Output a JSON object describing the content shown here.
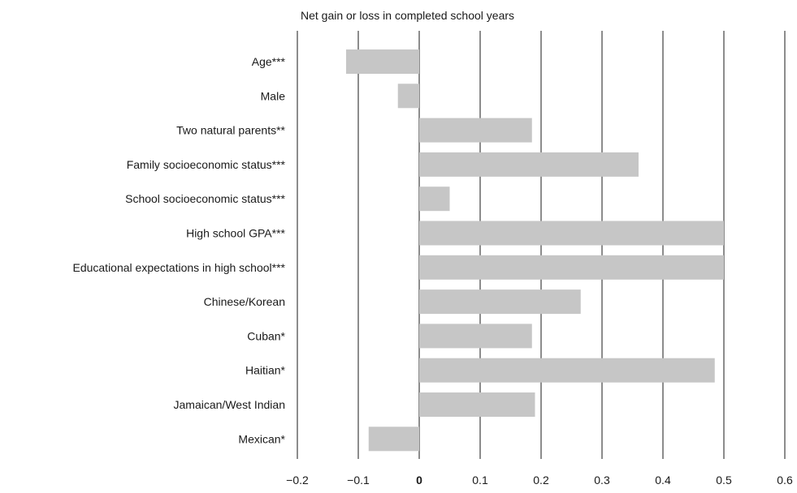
{
  "chart_data": {
    "type": "bar",
    "orientation": "horizontal",
    "title": "Net gain or loss in completed school years",
    "xlim": [
      -0.2,
      0.6
    ],
    "x_ticks": [
      -0.2,
      -0.1,
      0,
      0.1,
      0.2,
      0.3,
      0.4,
      0.5,
      0.6
    ],
    "x_tick_labels": [
      "−0.2",
      "−0.1",
      "0",
      "0.1",
      "0.2",
      "0.3",
      "0.4",
      "0.5",
      "0.6"
    ],
    "grid": "vertical",
    "bar_color": "#c6c6c6",
    "categories": [
      "Age***",
      "Male",
      "Two natural parents**",
      "Family socioeconomic status***",
      "School socioeconomic status***",
      "High school GPA***",
      "Educational expectations in high school***",
      "Chinese/Korean",
      "Cuban*",
      "Haitian*",
      "Jamaican/West Indian",
      "Mexican*"
    ],
    "values": [
      -0.12,
      -0.035,
      0.185,
      0.36,
      0.05,
      0.5,
      0.5,
      0.265,
      0.185,
      0.485,
      0.19,
      -0.083
    ]
  }
}
